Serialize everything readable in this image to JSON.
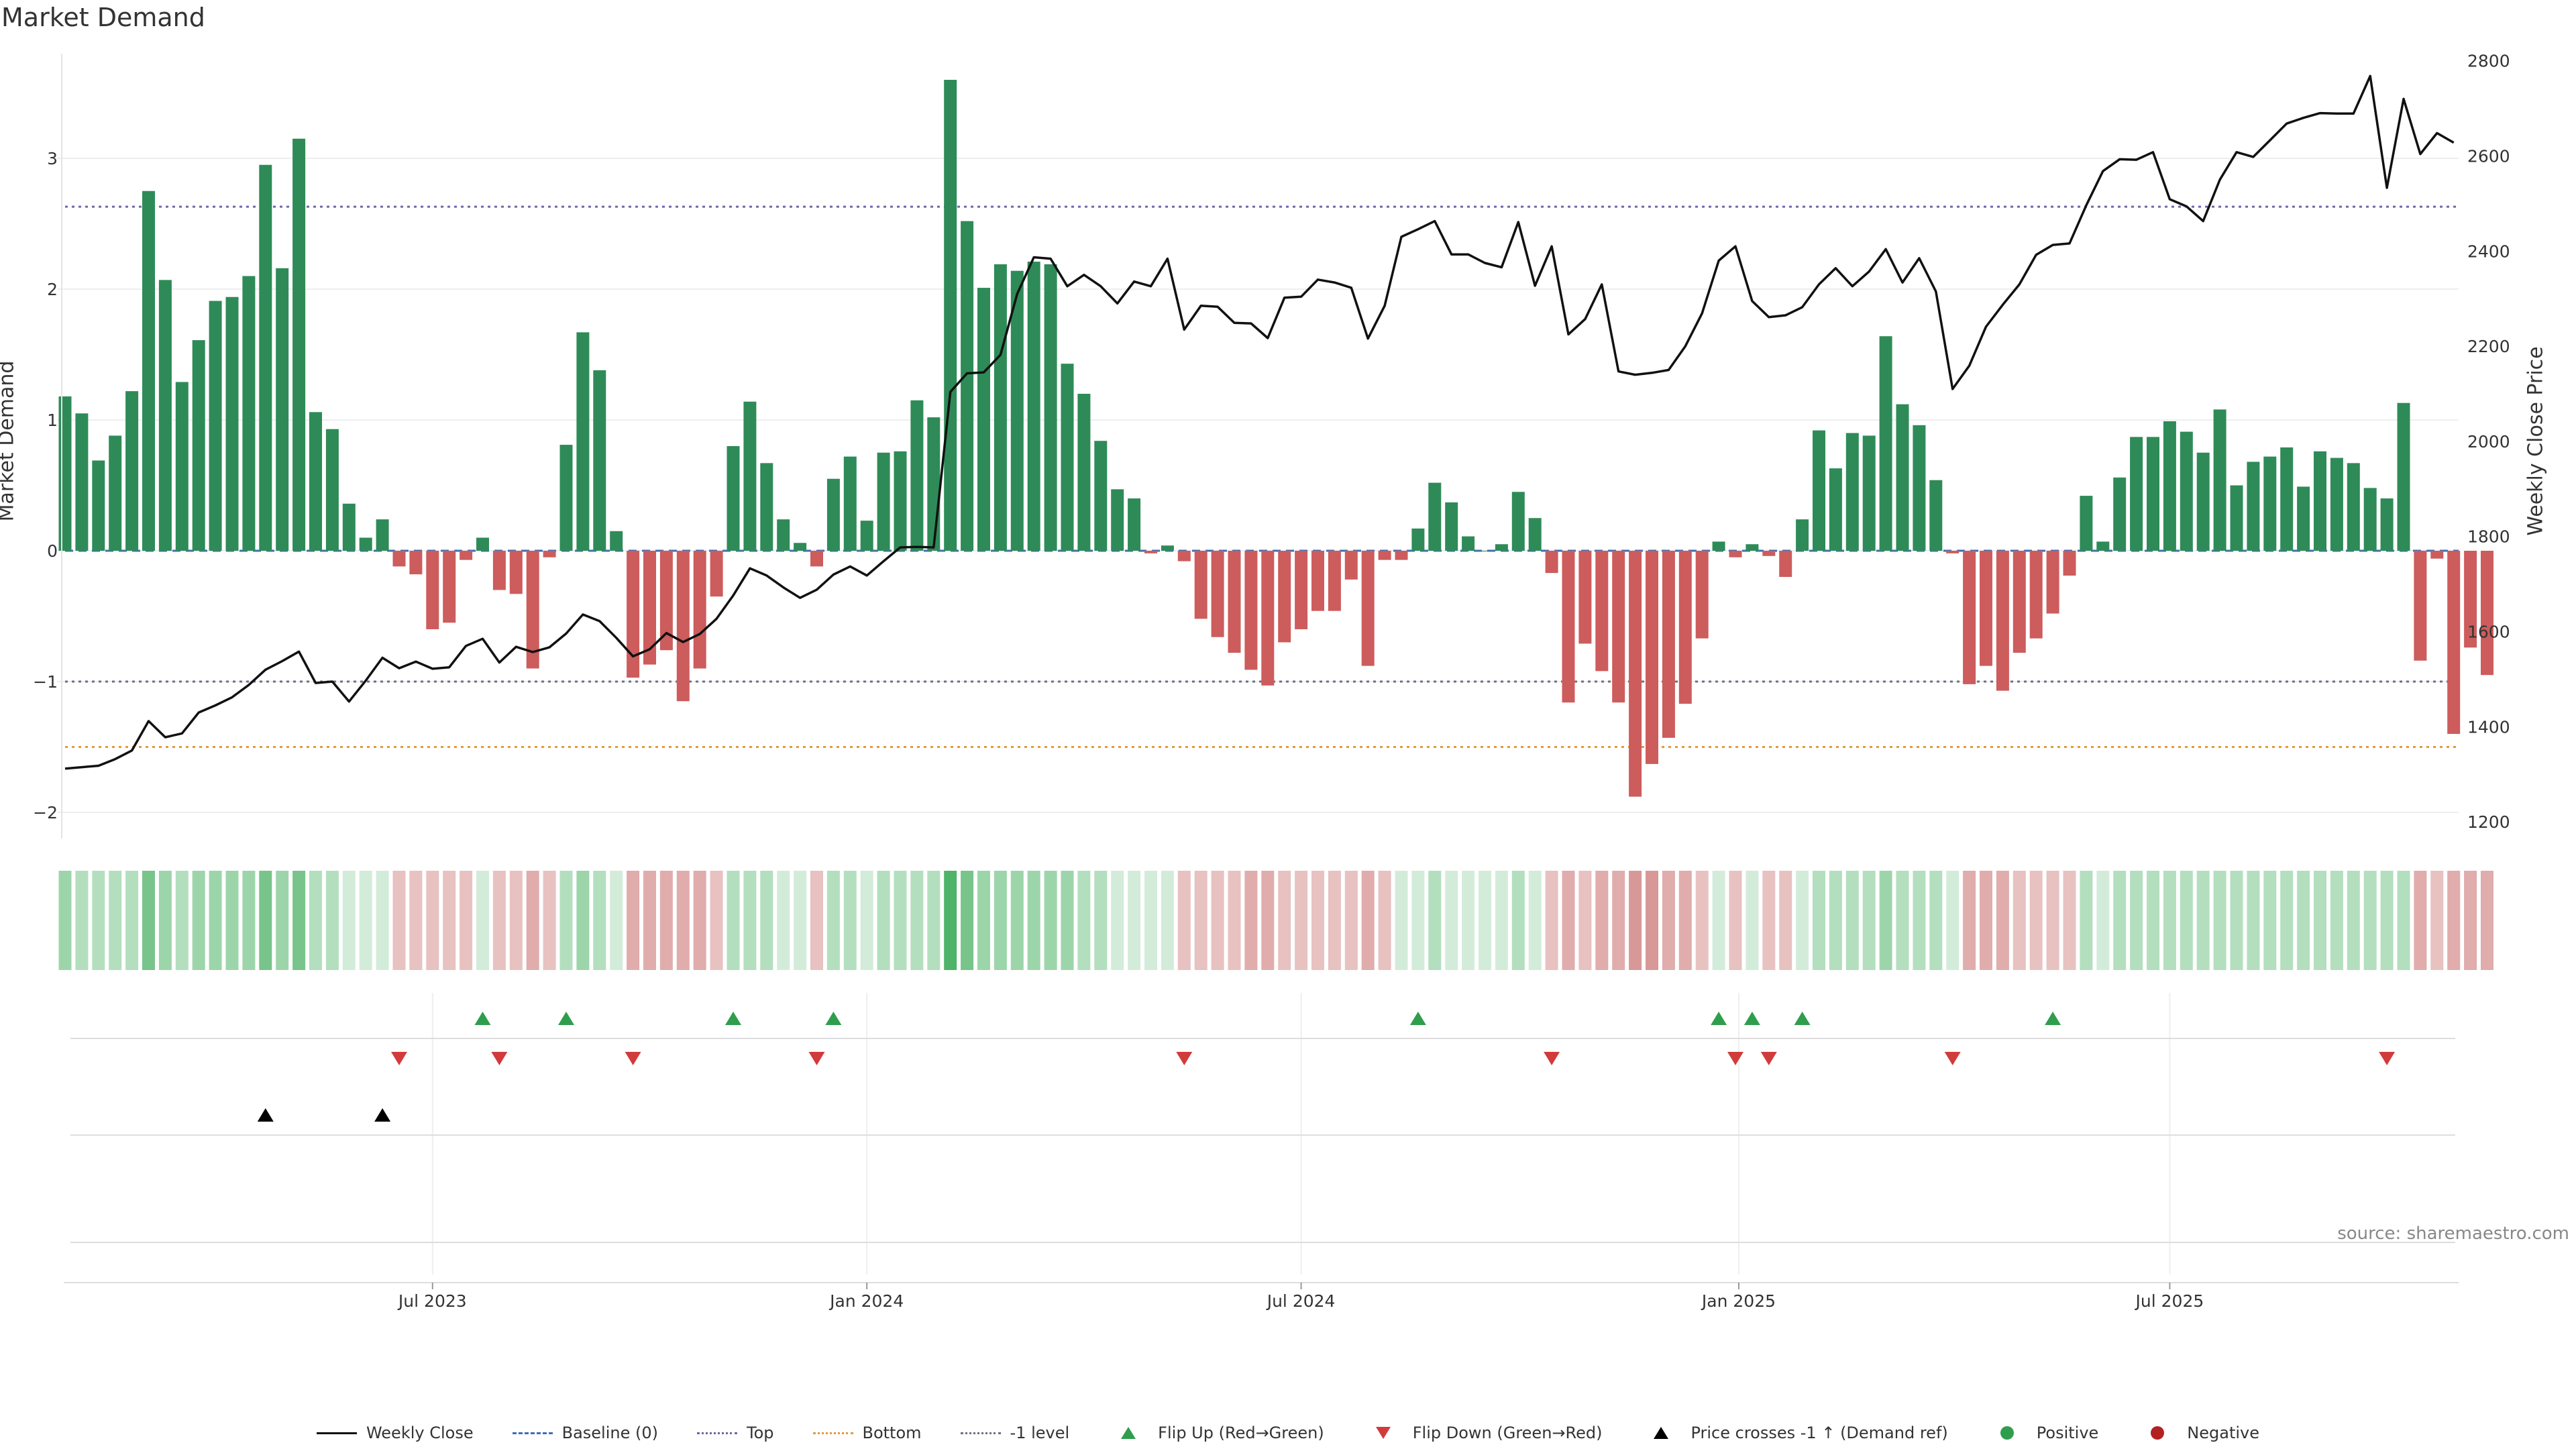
{
  "chart_data": {
    "type": "bar",
    "title": "Market Demand",
    "ylabel": "Market Demand",
    "y2label": "Weekly Close Price",
    "ylim": [
      -2.2,
      3.8
    ],
    "y2lim": [
      1165,
      2815
    ],
    "yticks": [
      -2,
      -1,
      0,
      1,
      2,
      3
    ],
    "y2ticks": [
      1200,
      1400,
      1600,
      1800,
      2000,
      2200,
      2400,
      2600,
      2800
    ],
    "xticks": [
      {
        "label": "Jul 2023",
        "index": 22
      },
      {
        "label": "Jan 2024",
        "index": 48
      },
      {
        "label": "Jul 2024",
        "index": 74
      },
      {
        "label": "Jan 2025",
        "index": 100.2
      },
      {
        "label": "Jul 2025",
        "index": 126
      }
    ],
    "reference_lines": {
      "top": 2.63,
      "bottom": -1.5,
      "minus_one": -1.0,
      "baseline": 0
    },
    "series": [
      {
        "name": "Market Demand",
        "values": [
          1.18,
          1.05,
          0.69,
          0.88,
          1.22,
          2.75,
          2.07,
          1.29,
          1.61,
          1.91,
          1.94,
          2.1,
          2.95,
          2.16,
          3.15,
          1.06,
          0.93,
          0.36,
          0.1,
          0.24,
          -0.12,
          -0.18,
          -0.6,
          -0.55,
          -0.07,
          0.1,
          -0.3,
          -0.33,
          -0.9,
          -0.05,
          0.81,
          1.67,
          1.38,
          0.15,
          -0.97,
          -0.87,
          -0.76,
          -1.15,
          -0.9,
          -0.35,
          0.8,
          1.14,
          0.67,
          0.24,
          0.06,
          -0.12,
          0.55,
          0.72,
          0.23,
          0.75,
          0.76,
          1.15,
          1.02,
          3.6,
          2.52,
          2.01,
          2.19,
          2.14,
          2.21,
          2.19,
          1.43,
          1.2,
          0.84,
          0.47,
          0.4,
          -0.02,
          0.04,
          -0.08,
          -0.52,
          -0.66,
          -0.78,
          -0.91,
          -1.03,
          -0.7,
          -0.6,
          -0.46,
          -0.46,
          -0.22,
          -0.88,
          -0.07,
          -0.07,
          0.17,
          0.52,
          0.37,
          0.11,
          0.0,
          0.05,
          0.45,
          0.25,
          -0.17,
          -1.16,
          -0.71,
          -0.92,
          -1.16,
          -1.88,
          -1.63,
          -1.43,
          -1.17,
          -0.67,
          0.07,
          -0.05,
          0.05,
          -0.04,
          -0.2,
          0.24,
          0.92,
          0.63,
          0.9,
          0.88,
          1.64,
          1.12,
          0.96,
          0.54,
          -0.02,
          -1.02,
          -0.88,
          -1.07,
          -0.78,
          -0.67,
          -0.48,
          -0.19,
          0.42,
          0.07,
          0.56,
          0.87,
          0.87,
          0.99,
          0.91,
          0.75,
          1.08,
          0.5,
          0.68,
          0.72,
          0.79,
          0.49,
          0.76,
          0.71,
          0.67,
          0.48,
          0.4,
          1.13,
          -0.84,
          -0.06,
          -1.4,
          -0.74,
          -0.95
        ]
      },
      {
        "name": "Weekly Close",
        "values": [
          1312,
          1315,
          1318,
          1332,
          1350,
          1412,
          1378,
          1386,
          1430,
          1445,
          1462,
          1488,
          1520,
          1538,
          1558,
          1492,
          1495,
          1453,
          1497,
          1545,
          1523,
          1537,
          1522,
          1525,
          1570,
          1585,
          1535,
          1568,
          1557,
          1567,
          1596,
          1636,
          1622,
          1587,
          1548,
          1563,
          1597,
          1578,
          1595,
          1627,
          1676,
          1733,
          1718,
          1693,
          1671,
          1688,
          1720,
          1737,
          1718,
          1748,
          1777,
          1778,
          1777,
          2104,
          2143,
          2145,
          2182,
          2310,
          2387,
          2384,
          2326,
          2350,
          2326,
          2290,
          2336,
          2326,
          2384,
          2235,
          2285,
          2283,
          2249,
          2248,
          2217,
          2302,
          2304,
          2340,
          2334,
          2323,
          2216,
          2285,
          2430,
          2446,
          2463,
          2393,
          2393,
          2375,
          2366,
          2461,
          2327,
          2410,
          2225,
          2257,
          2330,
          2147,
          2140,
          2144,
          2150,
          2200,
          2269,
          2380,
          2410,
          2295,
          2261,
          2265,
          2282,
          2330,
          2364,
          2326,
          2357,
          2404,
          2334,
          2385,
          2315,
          2110,
          2159,
          2241,
          2287,
          2330,
          2392,
          2413,
          2416,
          2496,
          2568,
          2593,
          2592,
          2608,
          2509,
          2494,
          2463,
          2550,
          2608,
          2598,
          2633,
          2668,
          2680,
          2690,
          2689,
          2689,
          2768,
          2533,
          2720,
          2604,
          2648,
          2628
        ]
      }
    ],
    "heat_strip": [
      2,
      1,
      1,
      1,
      1,
      3,
      2,
      1,
      2,
      2,
      2,
      2,
      3,
      2,
      3,
      1,
      1,
      0,
      0,
      0,
      -1,
      -1,
      -1,
      -1,
      -1,
      0,
      -1,
      -1,
      -2,
      -1,
      1,
      2,
      1,
      0,
      -2,
      -2,
      -2,
      -2,
      -2,
      -1,
      1,
      1,
      1,
      0,
      0,
      -1,
      1,
      1,
      0,
      1,
      1,
      1,
      1,
      4,
      3,
      2,
      2,
      2,
      2,
      2,
      2,
      1,
      1,
      0,
      0,
      0,
      0,
      -1,
      -1,
      -1,
      -1,
      -2,
      -2,
      -1,
      -1,
      -1,
      -1,
      -1,
      -2,
      -1,
      0,
      0,
      1,
      0,
      0,
      0,
      0,
      1,
      0,
      -1,
      -2,
      -1,
      -2,
      -2,
      -3,
      -3,
      -2,
      -2,
      -1,
      0,
      -1,
      0,
      -1,
      -1,
      0,
      1,
      1,
      1,
      1,
      2,
      1,
      1,
      1,
      0,
      -2,
      -2,
      -2,
      -1,
      -1,
      -1,
      -1,
      1,
      0,
      1,
      1,
      1,
      1,
      1,
      1,
      1,
      1,
      1,
      1,
      1,
      1,
      1,
      1,
      1,
      1,
      1,
      1,
      -2,
      -1,
      -2,
      -2,
      -2
    ],
    "flip_up": [
      25,
      30,
      40,
      46,
      81,
      99,
      101,
      104,
      119
    ],
    "flip_down": [
      20,
      26,
      34,
      45,
      67,
      89,
      100,
      102,
      113,
      139
    ],
    "price_cross": [
      12,
      19
    ],
    "xaxis_row": 3,
    "legend": [
      {
        "name": "Weekly Close",
        "style": "line",
        "color": "#111111"
      },
      {
        "name": "Baseline (0)",
        "style": "dashed",
        "color": "#3d6fb6"
      },
      {
        "name": "Top",
        "style": "dotted",
        "color": "#6d68a8"
      },
      {
        "name": "Bottom",
        "style": "dotted",
        "color": "#e39a3b"
      },
      {
        "name": "-1 level",
        "style": "dotted",
        "color": "#6e6e8a"
      },
      {
        "name": "Flip Up (Red→Green)",
        "style": "triangle-up",
        "color": "#2e9e4d"
      },
      {
        "name": "Flip Down (Green→Red)",
        "style": "triangle-down",
        "color": "#d13b3b"
      },
      {
        "name": "Price crosses -1 ↑ (Demand ref)",
        "style": "triangle-up",
        "color": "#000000"
      },
      {
        "name": "Positive",
        "style": "dot",
        "color": "#2e9e4d"
      },
      {
        "name": "Negative",
        "style": "dot",
        "color": "#b22222"
      }
    ],
    "colors": {
      "positive": "#2e8b57",
      "negative": "#cd5c5c",
      "price": "#111111"
    },
    "source": "source: sharemaestro.com"
  }
}
